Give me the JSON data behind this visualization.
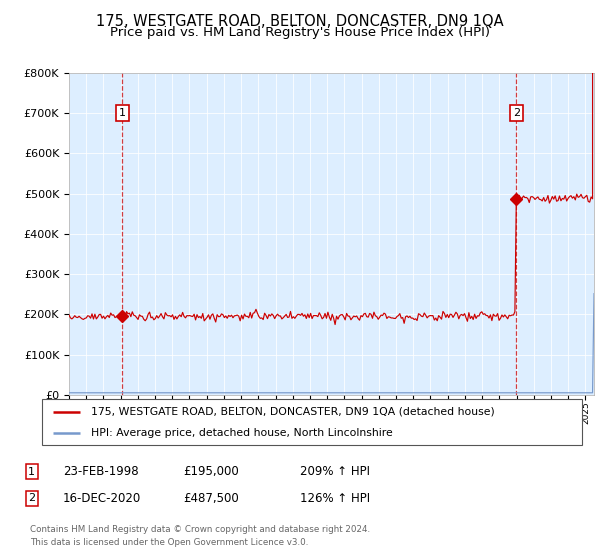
{
  "title": "175, WESTGATE ROAD, BELTON, DONCASTER, DN9 1QA",
  "subtitle": "Price paid vs. HM Land Registry's House Price Index (HPI)",
  "title_fontsize": 10.5,
  "subtitle_fontsize": 9.5,
  "plot_bg_color": "#ddeeff",
  "red_color": "#cc0000",
  "blue_color": "#7799cc",
  "dashed_color": "#cc0000",
  "sale1_year": 1998.12,
  "sale1_price": 195000,
  "sale2_year": 2020.96,
  "sale2_price": 487500,
  "legend_label_red": "175, WESTGATE ROAD, BELTON, DONCASTER, DN9 1QA (detached house)",
  "legend_label_blue": "HPI: Average price, detached house, North Lincolnshire",
  "annotation1_date": "23-FEB-1998",
  "annotation1_price": "£195,000",
  "annotation1_hpi": "209% ↑ HPI",
  "annotation2_date": "16-DEC-2020",
  "annotation2_price": "£487,500",
  "annotation2_hpi": "126% ↑ HPI",
  "footer": "Contains HM Land Registry data © Crown copyright and database right 2024.\nThis data is licensed under the Open Government Licence v3.0.",
  "ylim": [
    0,
    800000
  ],
  "yticks": [
    0,
    100000,
    200000,
    300000,
    400000,
    500000,
    600000,
    700000,
    800000
  ],
  "xstart": 1995,
  "xend": 2025.5
}
